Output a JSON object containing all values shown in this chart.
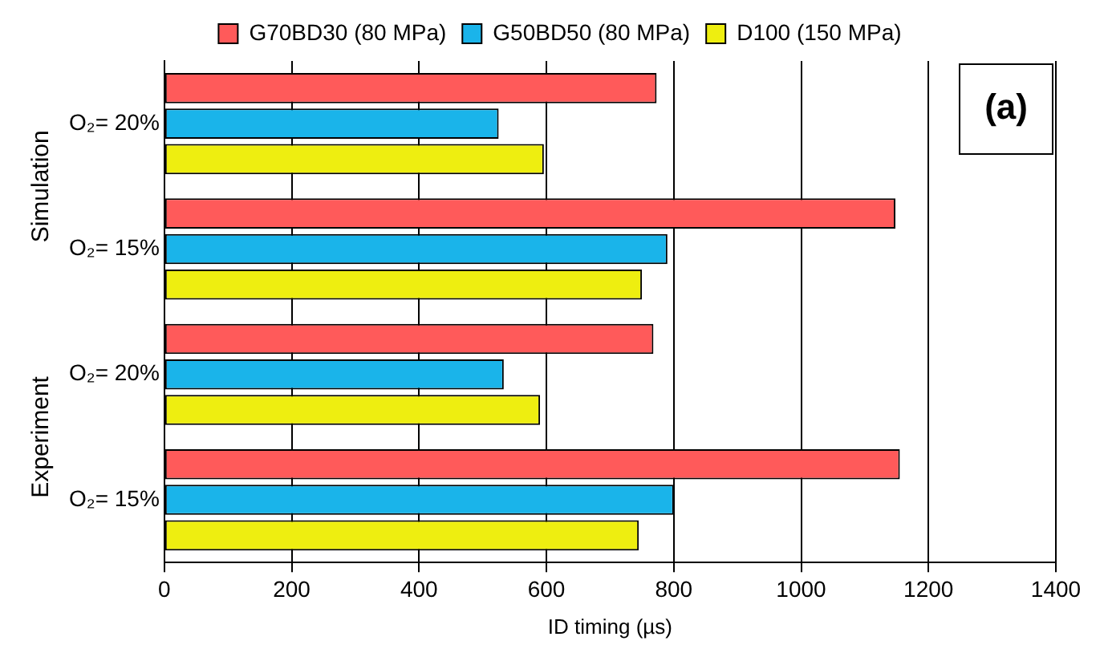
{
  "chart_data": {
    "type": "bar",
    "orientation": "horizontal",
    "xlabel": "ID timing (µs)",
    "categories": [
      "O₂= 20%",
      "O₂= 15%",
      "O₂= 20%",
      "O₂= 15%"
    ],
    "series": [
      {
        "name": "G70BD30 (80 MPa)",
        "color": "#ff5a5a",
        "values": [
          773,
          1148,
          768,
          1155
        ]
      },
      {
        "name": "G50BD50 (80 MPa)",
        "color": "#1ab4ea",
        "values": [
          525,
          790,
          533,
          800
        ]
      },
      {
        "name": "D100 (150 MPa)",
        "color": "#eeee10",
        "values": [
          596,
          750,
          590,
          745
        ]
      }
    ],
    "xlim": [
      0,
      1400
    ],
    "xticks": [
      0,
      200,
      400,
      600,
      800,
      1000,
      1200,
      1400
    ],
    "grid": "x",
    "legend": "top",
    "annotations": [
      "Simulation",
      "Experiment",
      "(a)"
    ]
  }
}
